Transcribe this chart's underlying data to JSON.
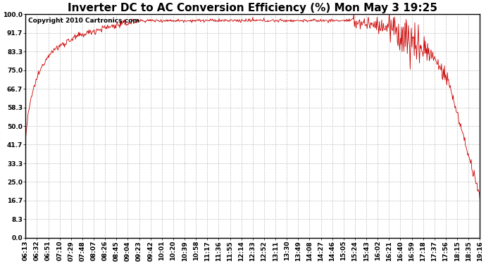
{
  "title": "Inverter DC to AC Conversion Efficiency (%) Mon May 3 19:25",
  "copyright": "Copyright 2010 Cartronics.com",
  "line_color": "#cc0000",
  "background_color": "#ffffff",
  "grid_color": "#bbbbbb",
  "yticks": [
    0.0,
    8.3,
    16.7,
    25.0,
    33.3,
    41.7,
    50.0,
    58.3,
    66.7,
    75.0,
    83.3,
    91.7,
    100.0
  ],
  "xtick_labels": [
    "06:13",
    "06:32",
    "06:51",
    "07:10",
    "07:29",
    "07:48",
    "08:07",
    "08:26",
    "08:45",
    "09:04",
    "09:23",
    "09:42",
    "10:01",
    "10:20",
    "10:39",
    "10:58",
    "11:17",
    "11:36",
    "11:55",
    "12:14",
    "12:33",
    "12:52",
    "13:11",
    "13:30",
    "13:49",
    "14:08",
    "14:27",
    "14:46",
    "15:05",
    "15:24",
    "15:43",
    "16:02",
    "16:21",
    "16:40",
    "16:59",
    "17:18",
    "17:37",
    "17:56",
    "18:15",
    "18:35",
    "19:16"
  ],
  "ylim": [
    0.0,
    100.0
  ],
  "title_fontsize": 11,
  "tick_fontsize": 6.5,
  "copyright_fontsize": 6.5,
  "figwidth": 6.9,
  "figheight": 3.75,
  "dpi": 100
}
